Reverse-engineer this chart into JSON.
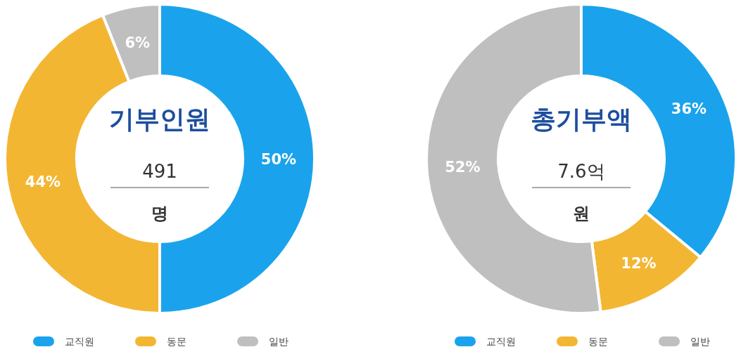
{
  "chart_data": [
    {
      "type": "donut",
      "title": "기부인원",
      "annotations": [
        "491",
        "명"
      ],
      "categories": [
        "교직원",
        "동문",
        "일반"
      ],
      "values": [
        50,
        44,
        6
      ],
      "value_labels": [
        "50%",
        "44%",
        "6%"
      ],
      "colors": [
        "#1aa3ec",
        "#f3b633",
        "#bfbfbf"
      ],
      "legend": "bottom"
    },
    {
      "type": "donut",
      "title": "총기부액",
      "annotations": [
        "7.6억",
        "원"
      ],
      "categories": [
        "교직원",
        "동문",
        "일반"
      ],
      "values": [
        36,
        12,
        52
      ],
      "value_labels": [
        "36%",
        "12%",
        "52%"
      ],
      "colors": [
        "#1aa3ec",
        "#f3b633",
        "#bfbfbf"
      ],
      "legend": "bottom"
    }
  ]
}
